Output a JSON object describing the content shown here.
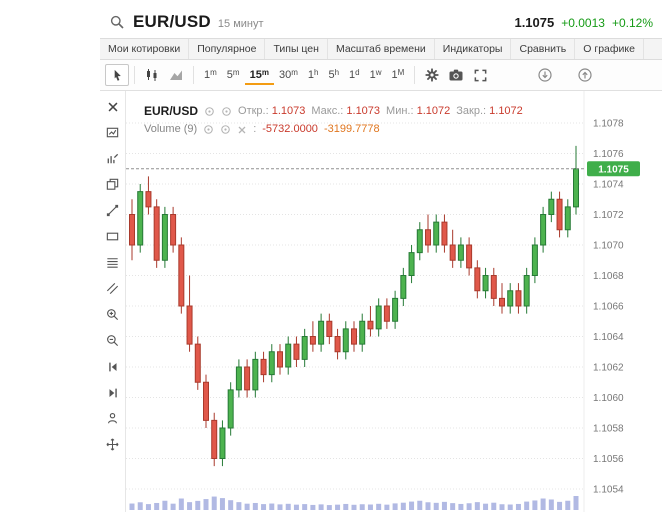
{
  "header": {
    "symbol": "EUR/USD",
    "interval": "15 минут",
    "price": "1.1075",
    "change": "+0.0013",
    "change_pct": "+0.12%"
  },
  "menubar": {
    "items": [
      "Мои котировки",
      "Популярное",
      "Типы цен",
      "Масштаб времени",
      "Индикаторы",
      "Сравнить",
      "О графике"
    ]
  },
  "toolbar": {
    "icons": [
      "cursor-icon",
      "candlestick-type-icon",
      "area-type-icon",
      "settings-gear-icon",
      "screenshot-camera-icon",
      "fullscreen-icon",
      "download-icon",
      "export-icon"
    ],
    "timeframes": [
      {
        "num": "1",
        "unit": "m",
        "selected": false
      },
      {
        "num": "5",
        "unit": "m",
        "selected": false
      },
      {
        "num": "15",
        "unit": "m",
        "selected": true
      },
      {
        "num": "30",
        "unit": "m",
        "selected": false
      },
      {
        "num": "1",
        "unit": "h",
        "selected": false
      },
      {
        "num": "5",
        "unit": "h",
        "selected": false
      },
      {
        "num": "1",
        "unit": "d",
        "selected": false
      },
      {
        "num": "1",
        "unit": "w",
        "selected": false
      },
      {
        "num": "1",
        "unit": "M",
        "selected": false
      }
    ]
  },
  "drawbar": {
    "tools": [
      "close-icon",
      "chart-panel-icon",
      "edit-indicator-icon",
      "duplicate-icon",
      "trend-line-icon",
      "rectangle-tool-icon",
      "fib-retracement-icon",
      "parallel-lines-icon",
      "zoom-in-icon",
      "zoom-out-icon",
      "step-back-icon",
      "step-forward-icon",
      "annotation-icon",
      "move-icon"
    ]
  },
  "legend": {
    "row1": {
      "symbol": "EUR/USD",
      "fields": [
        {
          "label": "Откр.:",
          "value": "1.1073"
        },
        {
          "label": "Макс.:",
          "value": "1.1073"
        },
        {
          "label": "Мин.:",
          "value": "1.1072"
        },
        {
          "label": "Закр.:",
          "value": "1.1072"
        }
      ]
    },
    "row2": {
      "name": "Volume (9)",
      "colon": ":",
      "value1": "-5732.0000",
      "value2": "-3199.7778"
    }
  },
  "colors": {
    "up": "#4db34f",
    "up_border": "#267a36",
    "down": "#e0584a",
    "down_border": "#a93a2c",
    "volume": "#a9b1e0",
    "badge_bg": "#3fae4a",
    "badge_text": "#ffffff",
    "accent_orange": "#f39c12",
    "change_green": "#169b16",
    "grid": "#e4e4e4",
    "price_line": "#909090"
  },
  "chart_data": {
    "type": "candlestick",
    "symbol": "EUR/USD",
    "interval": "15m",
    "current_price": "1.1075",
    "y_ticks": [
      "1.1078",
      "1.1076",
      "1.1074",
      "1.1072",
      "1.1070",
      "1.1068",
      "1.1066",
      "1.1064",
      "1.1062",
      "1.1060",
      "1.1058",
      "1.1056",
      "1.1054"
    ],
    "candles": [
      [
        1.1072,
        1.1073,
        1.1069,
        1.107
      ],
      [
        1.107,
        1.1074,
        1.10695,
        1.10735
      ],
      [
        1.10735,
        1.10745,
        1.1072,
        1.10725
      ],
      [
        1.10725,
        1.1073,
        1.10685,
        1.1069
      ],
      [
        1.1069,
        1.10725,
        1.10685,
        1.1072
      ],
      [
        1.1072,
        1.10725,
        1.10695,
        1.107
      ],
      [
        1.107,
        1.10705,
        1.10655,
        1.1066
      ],
      [
        1.1066,
        1.1068,
        1.1063,
        1.10635
      ],
      [
        1.10635,
        1.1064,
        1.10605,
        1.1061
      ],
      [
        1.1061,
        1.10615,
        1.1058,
        1.10585
      ],
      [
        1.10585,
        1.1059,
        1.10555,
        1.1056
      ],
      [
        1.1056,
        1.10585,
        1.10555,
        1.1058
      ],
      [
        1.1058,
        1.1061,
        1.10575,
        1.10605
      ],
      [
        1.10605,
        1.10625,
        1.106,
        1.1062
      ],
      [
        1.1062,
        1.10625,
        1.106,
        1.10605
      ],
      [
        1.10605,
        1.1063,
        1.106,
        1.10625
      ],
      [
        1.10625,
        1.1063,
        1.1061,
        1.10615
      ],
      [
        1.10615,
        1.10635,
        1.1061,
        1.1063
      ],
      [
        1.1063,
        1.10635,
        1.10615,
        1.1062
      ],
      [
        1.1062,
        1.1064,
        1.10615,
        1.10635
      ],
      [
        1.10635,
        1.1064,
        1.1062,
        1.10625
      ],
      [
        1.10625,
        1.10645,
        1.1062,
        1.1064
      ],
      [
        1.1064,
        1.1065,
        1.1063,
        1.10635
      ],
      [
        1.10635,
        1.10655,
        1.1063,
        1.1065
      ],
      [
        1.1065,
        1.10655,
        1.10635,
        1.1064
      ],
      [
        1.1064,
        1.10645,
        1.10625,
        1.1063
      ],
      [
        1.1063,
        1.1065,
        1.10625,
        1.10645
      ],
      [
        1.10645,
        1.1065,
        1.1063,
        1.10635
      ],
      [
        1.10635,
        1.10655,
        1.1063,
        1.1065
      ],
      [
        1.1065,
        1.1066,
        1.1064,
        1.10645
      ],
      [
        1.10645,
        1.10665,
        1.1064,
        1.1066
      ],
      [
        1.1066,
        1.10665,
        1.10645,
        1.1065
      ],
      [
        1.1065,
        1.1067,
        1.10645,
        1.10665
      ],
      [
        1.10665,
        1.10685,
        1.1066,
        1.1068
      ],
      [
        1.1068,
        1.107,
        1.10675,
        1.10695
      ],
      [
        1.10695,
        1.10715,
        1.1069,
        1.1071
      ],
      [
        1.1071,
        1.1072,
        1.10695,
        1.107
      ],
      [
        1.107,
        1.1072,
        1.10695,
        1.10715
      ],
      [
        1.10715,
        1.1072,
        1.10695,
        1.107
      ],
      [
        1.107,
        1.1071,
        1.10685,
        1.1069
      ],
      [
        1.1069,
        1.10705,
        1.10685,
        1.107
      ],
      [
        1.107,
        1.10705,
        1.1068,
        1.10685
      ],
      [
        1.10685,
        1.1069,
        1.10665,
        1.1067
      ],
      [
        1.1067,
        1.10685,
        1.10665,
        1.1068
      ],
      [
        1.1068,
        1.10685,
        1.1066,
        1.10665
      ],
      [
        1.10665,
        1.10675,
        1.10655,
        1.1066
      ],
      [
        1.1066,
        1.10675,
        1.10655,
        1.1067
      ],
      [
        1.1067,
        1.10675,
        1.10655,
        1.1066
      ],
      [
        1.1066,
        1.10685,
        1.10655,
        1.1068
      ],
      [
        1.1068,
        1.10705,
        1.10675,
        1.107
      ],
      [
        1.107,
        1.10725,
        1.10695,
        1.1072
      ],
      [
        1.1072,
        1.10735,
        1.10715,
        1.1073
      ],
      [
        1.1073,
        1.10735,
        1.10705,
        1.1071
      ],
      [
        1.1071,
        1.1073,
        1.10705,
        1.10725
      ],
      [
        1.10725,
        1.10765,
        1.1072,
        1.1075
      ]
    ],
    "volumes": [
      3200,
      4100,
      2800,
      3600,
      5200,
      3100,
      6800,
      4200,
      5100,
      6400,
      8200,
      7100,
      5600,
      4200,
      3100,
      3600,
      2800,
      3200,
      2600,
      3000,
      2400,
      2800,
      2200,
      2600,
      2100,
      2400,
      2900,
      2300,
      2700,
      2500,
      3000,
      2400,
      3300,
      3800,
      4600,
      5200,
      4100,
      3700,
      4400,
      3500,
      2900,
      3400,
      4200,
      3100,
      3800,
      2700,
      2500,
      2900,
      4600,
      5400,
      6800,
      6100,
      4400,
      5200,
      8600
    ]
  }
}
